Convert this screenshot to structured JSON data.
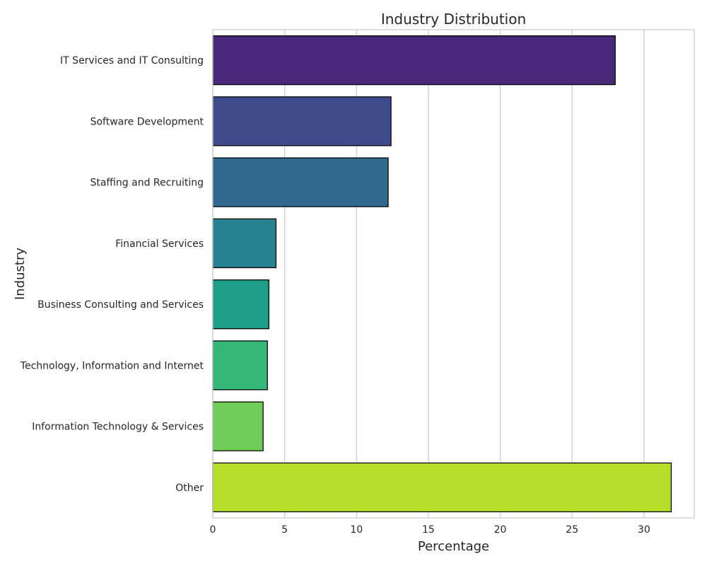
{
  "chart_data": {
    "type": "bar",
    "orientation": "horizontal",
    "title": "Industry Distribution",
    "xlabel": "Percentage",
    "ylabel": "Industry",
    "categories": [
      "IT Services and IT Consulting",
      "Software Development",
      "Staffing and Recruiting",
      "Financial Services",
      "Business Consulting and Services",
      "Technology, Information and Internet",
      "Information Technology & Services",
      "Other"
    ],
    "values": [
      28.0,
      12.4,
      12.2,
      4.4,
      3.9,
      3.8,
      3.5,
      31.9
    ],
    "colors": [
      "#482878",
      "#3e4a89",
      "#31688e",
      "#26828e",
      "#1f9e89",
      "#35b779",
      "#6ece58",
      "#b5de2b"
    ],
    "xlim": [
      0,
      33.5
    ],
    "xticks": [
      0,
      5,
      10,
      15,
      20,
      25,
      30
    ],
    "grid": true,
    "legend": "none"
  }
}
